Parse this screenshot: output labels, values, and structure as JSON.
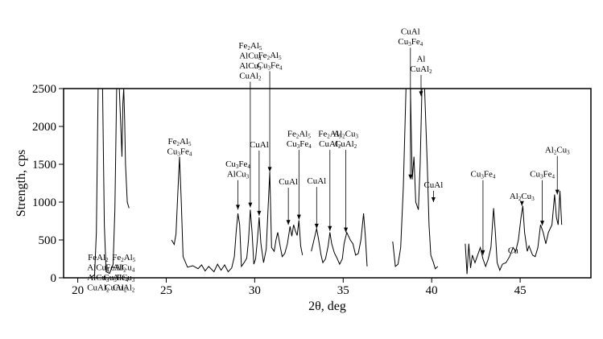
{
  "chart_data": {
    "type": "line",
    "title": "",
    "xlabel": "2θ, deg",
    "ylabel": "Strength, cps",
    "xlim": [
      19.2,
      49
    ],
    "ylim": [
      0,
      2500
    ],
    "xticks": [
      20,
      25,
      30,
      35,
      40,
      45
    ],
    "yticks": [
      0,
      500,
      1000,
      1500,
      2000,
      2500
    ],
    "grid": false,
    "legend": "none",
    "colors": {
      "line": "#000000",
      "axes": "#000000",
      "background": "#ffffff"
    },
    "series": [
      {
        "segments": [
          [
            [
              20.2,
              0
            ],
            [
              20.7,
              0
            ],
            [
              20.95,
              40
            ],
            [
              21.05,
              600
            ],
            [
              21.15,
              2500
            ],
            [
              21.4,
              2500
            ],
            [
              21.5,
              700
            ],
            [
              21.6,
              80
            ],
            [
              21.8,
              60
            ],
            [
              22.0,
              180
            ],
            [
              22.1,
              900
            ],
            [
              22.2,
              2500
            ],
            [
              22.35,
              2500
            ],
            [
              22.5,
              1600
            ],
            [
              22.55,
              2300
            ],
            [
              22.6,
              2500
            ],
            [
              22.65,
              2100
            ],
            [
              22.7,
              1500
            ],
            [
              22.8,
              1000
            ],
            [
              22.9,
              920
            ]
          ],
          [
            [
              25.3,
              500
            ],
            [
              25.45,
              440
            ],
            [
              25.55,
              580
            ],
            [
              25.65,
              1100
            ],
            [
              25.75,
              1600
            ],
            [
              25.85,
              1000
            ],
            [
              25.95,
              280
            ],
            [
              26.2,
              140
            ],
            [
              26.5,
              160
            ],
            [
              26.8,
              120
            ],
            [
              27.0,
              170
            ],
            [
              27.2,
              90
            ],
            [
              27.4,
              150
            ],
            [
              27.7,
              80
            ],
            [
              27.9,
              180
            ],
            [
              28.1,
              100
            ],
            [
              28.3,
              170
            ],
            [
              28.5,
              80
            ],
            [
              28.7,
              130
            ],
            [
              28.85,
              280
            ],
            [
              28.95,
              600
            ],
            [
              29.05,
              850
            ],
            [
              29.15,
              700
            ],
            [
              29.25,
              150
            ],
            [
              29.4,
              200
            ],
            [
              29.55,
              260
            ],
            [
              29.65,
              500
            ],
            [
              29.75,
              900
            ],
            [
              29.85,
              600
            ],
            [
              29.95,
              180
            ],
            [
              30.05,
              250
            ],
            [
              30.15,
              500
            ],
            [
              30.25,
              800
            ],
            [
              30.35,
              450
            ],
            [
              30.5,
              200
            ],
            [
              30.65,
              380
            ],
            [
              30.75,
              900
            ],
            [
              30.85,
              1400
            ],
            [
              30.95,
              400
            ],
            [
              31.1,
              350
            ],
            [
              31.2,
              500
            ],
            [
              31.3,
              600
            ],
            [
              31.45,
              400
            ],
            [
              31.55,
              280
            ],
            [
              31.7,
              320
            ],
            [
              31.85,
              450
            ],
            [
              32.0,
              680
            ],
            [
              32.1,
              550
            ],
            [
              32.2,
              700
            ],
            [
              32.3,
              620
            ],
            [
              32.4,
              560
            ],
            [
              32.5,
              760
            ],
            [
              32.6,
              420
            ],
            [
              32.7,
              300
            ]
          ],
          [
            [
              33.2,
              350
            ],
            [
              33.35,
              500
            ],
            [
              33.5,
              650
            ],
            [
              33.6,
              520
            ],
            [
              33.75,
              300
            ],
            [
              33.85,
              200
            ],
            [
              34.0,
              250
            ],
            [
              34.15,
              420
            ],
            [
              34.25,
              600
            ],
            [
              34.35,
              450
            ],
            [
              34.5,
              330
            ],
            [
              34.65,
              260
            ],
            [
              34.8,
              180
            ],
            [
              34.95,
              250
            ],
            [
              35.05,
              450
            ],
            [
              35.2,
              600
            ],
            [
              35.4,
              500
            ],
            [
              35.55,
              450
            ],
            [
              35.7,
              300
            ],
            [
              35.85,
              320
            ],
            [
              36.0,
              500
            ],
            [
              36.15,
              850
            ],
            [
              36.25,
              550
            ],
            [
              36.35,
              150
            ]
          ],
          [
            [
              37.8,
              480
            ],
            [
              37.95,
              150
            ],
            [
              38.1,
              180
            ],
            [
              38.25,
              400
            ],
            [
              38.4,
              1200
            ],
            [
              38.55,
              2500
            ],
            [
              38.8,
              2500
            ],
            [
              38.9,
              1300
            ],
            [
              39.0,
              1600
            ],
            [
              39.1,
              1000
            ],
            [
              39.25,
              900
            ],
            [
              39.35,
              1500
            ],
            [
              39.45,
              2500
            ],
            [
              39.6,
              2500
            ],
            [
              39.75,
              1500
            ],
            [
              39.85,
              700
            ],
            [
              39.95,
              300
            ],
            [
              40.1,
              200
            ],
            [
              40.2,
              120
            ],
            [
              40.35,
              150
            ]
          ],
          [
            [
              41.9,
              450
            ],
            [
              42.0,
              50
            ],
            [
              42.1,
              450
            ],
            [
              42.2,
              130
            ],
            [
              42.3,
              300
            ],
            [
              42.45,
              200
            ],
            [
              42.6,
              300
            ],
            [
              42.75,
              400
            ],
            [
              42.9,
              250
            ],
            [
              43.05,
              150
            ],
            [
              43.2,
              250
            ],
            [
              43.35,
              400
            ],
            [
              43.5,
              920
            ],
            [
              43.6,
              600
            ],
            [
              43.7,
              200
            ],
            [
              43.85,
              100
            ],
            [
              44.0,
              180
            ],
            [
              44.2,
              200
            ],
            [
              44.4,
              280
            ],
            [
              44.6,
              400
            ],
            [
              44.75,
              350
            ],
            [
              44.9,
              500
            ],
            [
              45.05,
              800
            ],
            [
              45.15,
              950
            ],
            [
              45.25,
              600
            ],
            [
              45.4,
              350
            ],
            [
              45.5,
              420
            ],
            [
              45.7,
              300
            ],
            [
              45.85,
              280
            ],
            [
              46.0,
              400
            ],
            [
              46.15,
              700
            ],
            [
              46.3,
              600
            ],
            [
              46.45,
              450
            ],
            [
              46.6,
              600
            ],
            [
              46.8,
              700
            ],
            [
              46.95,
              1100
            ],
            [
              47.05,
              800
            ],
            [
              47.15,
              700
            ],
            [
              47.25,
              1150
            ],
            [
              47.35,
              700
            ]
          ]
        ]
      }
    ],
    "annotations": [
      {
        "id": "ann-1",
        "lines": [
          [
            "FeAl",
            "2"
          ],
          [
            "AlCu",
            "4"
          ],
          [
            "AlCu",
            "3"
          ],
          [
            "CuAl",
            "2"
          ]
        ],
        "x": 21.15,
        "line_top": -205,
        "line_bottom": 2500
      },
      {
        "id": "ann-2",
        "lines": [
          [
            "FeAl",
            "2"
          ],
          [
            "Cu",
            "3",
            "Fe",
            "4"
          ],
          [
            "CuAl",
            "2"
          ]
        ],
        "x": 22.15,
        "line_top": -205,
        "line_bottom": 2500
      },
      {
        "id": "ann-3",
        "lines": [
          [
            "Fe",
            "2",
            "Al",
            "5"
          ],
          [
            "AlCu",
            "4"
          ],
          [
            "AlCu",
            "3"
          ],
          [
            "CuAl",
            "2"
          ]
        ],
        "x": 22.6,
        "line_top": -205,
        "line_bottom": 2400
      },
      {
        "id": "ann-4",
        "lines": [
          [
            "Fe",
            "2",
            "Al",
            "5"
          ],
          [
            "Cu",
            "3",
            "Fe",
            "4"
          ]
        ],
        "x": 25.75,
        "line_top": 1590,
        "line_bottom": 1590
      },
      {
        "id": "ann-5",
        "lines": [
          [
            "Cu",
            "3",
            "Fe",
            "4"
          ],
          [
            "AlCu",
            "3"
          ]
        ],
        "x": 29.05,
        "line_top": 1290,
        "line_bottom": 900
      },
      {
        "id": "ann-6",
        "lines": [
          [
            "Fe",
            "2",
            "Al",
            "5"
          ],
          [
            "AlCu",
            "4"
          ],
          [
            "AlCu",
            "3"
          ],
          [
            "CuAl",
            "2"
          ]
        ],
        "x": 29.75,
        "line_top": 2590,
        "line_bottom": 930
      },
      {
        "id": "ann-7",
        "lines": [
          [
            "CuAl"
          ]
        ],
        "x": 30.25,
        "line_top": 1680,
        "line_bottom": 820
      },
      {
        "id": "ann-8",
        "lines": [
          [
            "Fe",
            "2",
            "Al",
            "5"
          ],
          [
            "Cu",
            "3",
            "Fe",
            "4"
          ]
        ],
        "x": 30.85,
        "line_top": 2730,
        "line_bottom": 1400
      },
      {
        "id": "ann-9",
        "lines": [
          [
            "CuAl"
          ]
        ],
        "x": 31.9,
        "line_top": 1190,
        "line_bottom": 700
      },
      {
        "id": "ann-10",
        "lines": [
          [
            "Fe",
            "2",
            "Al",
            "5"
          ],
          [
            "Cu",
            "3",
            "Fe",
            "4"
          ]
        ],
        "x": 32.5,
        "line_top": 1690,
        "line_bottom": 770
      },
      {
        "id": "ann-11",
        "lines": [
          [
            "CuAl"
          ]
        ],
        "x": 33.5,
        "line_top": 1200,
        "line_bottom": 650
      },
      {
        "id": "ann-12",
        "lines": [
          [
            "Fe",
            "2",
            "Al",
            "5"
          ],
          [
            "CuAl",
            "2"
          ]
        ],
        "x": 34.25,
        "line_top": 1690,
        "line_bottom": 620
      },
      {
        "id": "ann-13",
        "lines": [
          [
            "Al",
            "2",
            "Cu",
            "3"
          ],
          [
            "CuAl",
            "2"
          ]
        ],
        "x": 35.15,
        "line_top": 1690,
        "line_bottom": 600
      },
      {
        "id": "ann-14",
        "lines": [
          [
            "CuAl"
          ],
          [
            "Cu",
            "3",
            "Fe",
            "4"
          ]
        ],
        "x": 38.8,
        "line_top": 3040,
        "line_bottom": 1300
      },
      {
        "id": "ann-15",
        "lines": [
          [
            "Al"
          ],
          [
            "CuAl",
            "2"
          ]
        ],
        "x": 39.4,
        "line_top": 2680,
        "line_bottom": 2400
      },
      {
        "id": "ann-16",
        "lines": [
          [
            "CuAl"
          ]
        ],
        "x": 40.1,
        "line_top": 1150,
        "line_bottom": 1000
      },
      {
        "id": "ann-17",
        "lines": [
          [
            "Cu",
            "3",
            "Fe",
            "4"
          ]
        ],
        "x": 42.9,
        "line_top": 1290,
        "line_bottom": 300
      },
      {
        "id": "ann-18",
        "lines": [
          [
            "Al",
            "2",
            "Cu",
            "3"
          ]
        ],
        "x": 45.1,
        "line_top": 1000,
        "line_bottom": 950
      },
      {
        "id": "ann-19",
        "lines": [
          [
            "Cu"
          ]
        ],
        "x": 44.6,
        "line_top": 280,
        "line_bottom": 280
      },
      {
        "id": "ann-20",
        "lines": [
          [
            "Cu",
            "3",
            "Fe",
            "4"
          ]
        ],
        "x": 46.25,
        "line_top": 1290,
        "line_bottom": 690
      },
      {
        "id": "ann-21",
        "lines": [
          [
            "Al",
            "2",
            "Cu",
            "3"
          ]
        ],
        "x": 47.1,
        "line_top": 1610,
        "line_bottom": 1100
      }
    ]
  }
}
